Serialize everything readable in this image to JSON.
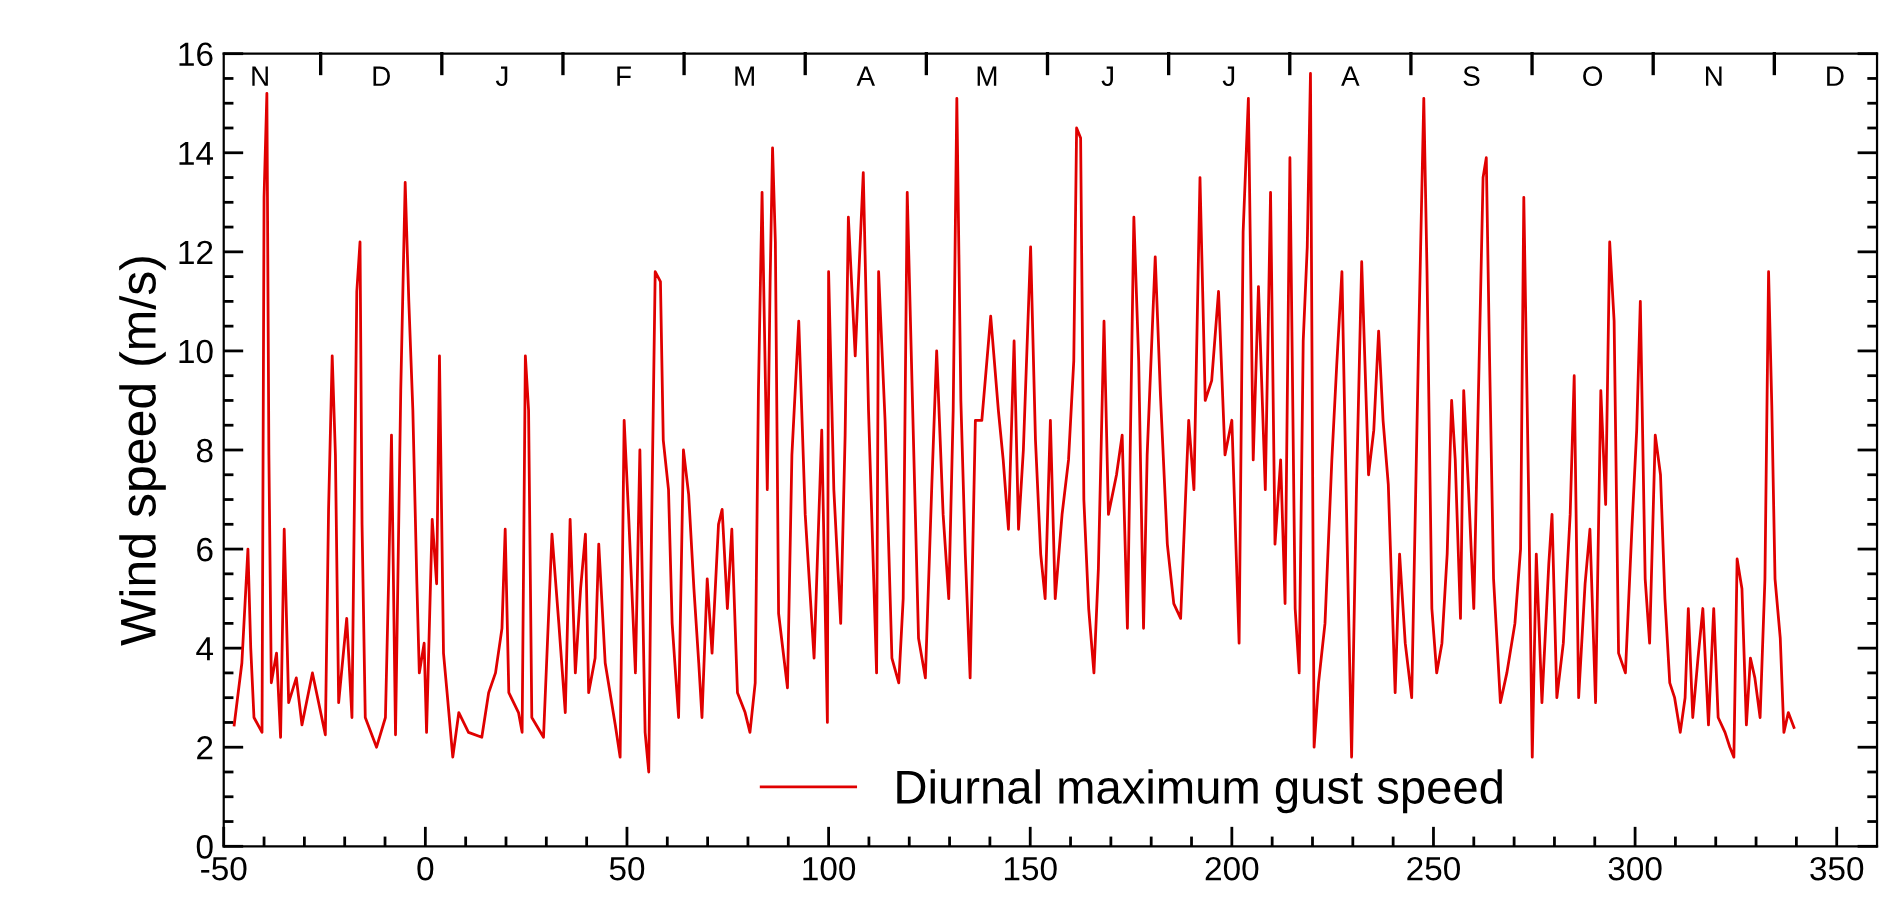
{
  "chart_data": {
    "type": "line",
    "ylabel": "Wind speed (m/s)",
    "legend": "bottom",
    "grid": false,
    "line_style": "solid",
    "marker": "none",
    "xlim": [
      -50,
      360
    ],
    "ylim": [
      0,
      16
    ],
    "xticks": [
      -50,
      {
        "value": -40,
        "label": null
      },
      {
        "value": -30,
        "label": null
      },
      {
        "value": -20,
        "label": null
      },
      {
        "value": -10,
        "label": null
      },
      0,
      {
        "value": 10,
        "label": null
      },
      {
        "value": 20,
        "label": null
      },
      {
        "value": 30,
        "label": null
      },
      {
        "value": 40,
        "label": null
      },
      50,
      {
        "value": 60,
        "label": null
      },
      {
        "value": 70,
        "label": null
      },
      {
        "value": 80,
        "label": null
      },
      {
        "value": 90,
        "label": null
      },
      100,
      {
        "value": 110,
        "label": null
      },
      {
        "value": 120,
        "label": null
      },
      {
        "value": 130,
        "label": null
      },
      {
        "value": 140,
        "label": null
      },
      150,
      {
        "value": 160,
        "label": null
      },
      {
        "value": 170,
        "label": null
      },
      {
        "value": 180,
        "label": null
      },
      {
        "value": 190,
        "label": null
      },
      200,
      {
        "value": 210,
        "label": null
      },
      {
        "value": 220,
        "label": null
      },
      {
        "value": 230,
        "label": null
      },
      {
        "value": 240,
        "label": null
      },
      250,
      {
        "value": 260,
        "label": null
      },
      {
        "value": 270,
        "label": null
      },
      {
        "value": 280,
        "label": null
      },
      {
        "value": 290,
        "label": null
      },
      300,
      {
        "value": 310,
        "label": null
      },
      {
        "value": 320,
        "label": null
      },
      {
        "value": 330,
        "label": null
      },
      {
        "value": 340,
        "label": null
      },
      350
    ],
    "yticks": [
      0,
      {
        "value": 0.5,
        "label": null
      },
      {
        "value": 1,
        "label": null
      },
      {
        "value": 1.5,
        "label": null
      },
      2,
      {
        "value": 2.5,
        "label": null
      },
      {
        "value": 3,
        "label": null
      },
      {
        "value": 3.5,
        "label": null
      },
      4,
      {
        "value": 4.5,
        "label": null
      },
      {
        "value": 5,
        "label": null
      },
      {
        "value": 5.5,
        "label": null
      },
      6,
      {
        "value": 6.5,
        "label": null
      },
      {
        "value": 7,
        "label": null
      },
      {
        "value": 7.5,
        "label": null
      },
      8,
      {
        "value": 8.5,
        "label": null
      },
      {
        "value": 9,
        "label": null
      },
      {
        "value": 9.5,
        "label": null
      },
      10,
      {
        "value": 10.5,
        "label": null
      },
      {
        "value": 11,
        "label": null
      },
      {
        "value": 11.5,
        "label": null
      },
      12,
      {
        "value": 12.5,
        "label": null
      },
      {
        "value": 13,
        "label": null
      },
      {
        "value": 13.5,
        "label": null
      },
      14,
      {
        "value": 14.5,
        "label": null
      },
      {
        "value": 15,
        "label": null
      },
      {
        "value": 15.5,
        "label": null
      },
      16
    ],
    "annotations": [
      "N",
      "D",
      "J",
      "F",
      "M",
      "A",
      "M",
      "J",
      "J",
      "A",
      "S",
      "O",
      "N",
      "D"
    ],
    "series": [
      {
        "name": "Diurnal maximum gust speed",
        "color": "#e00000",
        "x": [
          -47.4,
          -45.5,
          -44,
          -43.3,
          -42.5,
          -40.5,
          -40,
          -39.3,
          -38.8,
          -38.2,
          -36.9,
          -35.9,
          -35,
          -33.9,
          -32,
          -30.6,
          -28,
          -24.8,
          -24,
          -23.1,
          -22.3,
          -21.5,
          -19.5,
          -18.2,
          -17,
          -16.2,
          -15.7,
          -14.9,
          -12.1,
          -9.9,
          -9.1,
          -8.4,
          -7.4,
          -6.1,
          -5,
          -4.1,
          -3.1,
          -2.1,
          -1.5,
          -0.3,
          0.3,
          1.7,
          2.8,
          3.5,
          4.5,
          5.5,
          6.8,
          8.3,
          10.7,
          14,
          15.7,
          17.4,
          19,
          19.8,
          20.7,
          23.1,
          24,
          24.8,
          25.6,
          26.4,
          29.3,
          31.4,
          33.1,
          34.7,
          35.9,
          37.2,
          38.5,
          39.7,
          40.5,
          42.1,
          43,
          44.6,
          47.1,
          48.3,
          49.3,
          50.4,
          52.1,
          53.2,
          54.5,
          55.4,
          55.9,
          57,
          58.3,
          59,
          60.3,
          61.2,
          62.8,
          64,
          65.3,
          66.6,
          67.8,
          68.6,
          69.9,
          71.1,
          72.7,
          73.6,
          74.9,
          76,
          77.4,
          79.3,
          80.5,
          81.8,
          82.6,
          83.5,
          84.8,
          85.5,
          86.1,
          86.8,
          87.6,
          89.8,
          90.9,
          92.6,
          94.2,
          96.4,
          98.3,
          99.7,
          100,
          101.3,
          103,
          104.1,
          104.9,
          106.6,
          108.6,
          109.9,
          111.9,
          112.4,
          114,
          115.7,
          117.4,
          118.5,
          119.5,
          120.7,
          122.3,
          124,
          125.6,
          126.8,
          128.4,
          129.8,
          130.9,
          131.8,
          132.8,
          133.9,
          135.1,
          136.4,
          138,
          140.2,
          142.1,
          143.3,
          144.6,
          146,
          147.1,
          148.3,
          150.1,
          151.3,
          152.6,
          153.7,
          155,
          156.2,
          157.9,
          159.5,
          160.8,
          161.5,
          162.5,
          163.3,
          164.5,
          165.8,
          166.9,
          168.3,
          169.4,
          171.4,
          172.8,
          174.1,
          175.7,
          176.9,
          178.1,
          179,
          181,
          182.3,
          184,
          185.6,
          187.3,
          189.3,
          190.6,
          192.1,
          193.4,
          195,
          196.7,
          198.3,
          200,
          201.8,
          202.8,
          204.1,
          205.3,
          206.6,
          208.3,
          209.6,
          210.7,
          212.1,
          213.2,
          214.4,
          215.7,
          216.7,
          217.7,
          218.7,
          219.5,
          220.4,
          221.5,
          223.1,
          224.8,
          226,
          227.3,
          228.6,
          229.7,
          230.9,
          232.2,
          233.9,
          235.2,
          236.4,
          237.5,
          238.8,
          240.5,
          241.6,
          243,
          244.6,
          246.3,
          247.6,
          248.4,
          249.6,
          250.8,
          252.1,
          253.4,
          254.5,
          255.4,
          256.7,
          257.5,
          258.7,
          260,
          261.3,
          262.3,
          263.1,
          263.9,
          264.9,
          266.6,
          268.2,
          270.2,
          271.6,
          272.4,
          273.6,
          274.5,
          275.5,
          276.9,
          278.6,
          279.4,
          280.6,
          282.2,
          283.9,
          284.9,
          286,
          287.6,
          288.8,
          290.2,
          291.5,
          292.7,
          293.7,
          294.8,
          295.9,
          297.6,
          299.2,
          300.4,
          301.3,
          302.5,
          303.6,
          305,
          306.3,
          307.4,
          308.6,
          309.8,
          311.2,
          312.4,
          313.2,
          314.3,
          315.6,
          316.8,
          318.2,
          319.5,
          320.6,
          322.3,
          323.5,
          324.5,
          325.3,
          326.5,
          327.6,
          328.6,
          329.7,
          331,
          332.2,
          333.1,
          333.9,
          334.7,
          336,
          336.9,
          338,
          339.4
        ],
        "values": [
          2.45,
          3.7,
          6.0,
          4.0,
          2.6,
          2.3,
          13.1,
          15.2,
          7.9,
          3.3,
          3.9,
          2.2,
          6.4,
          2.9,
          3.4,
          2.45,
          3.5,
          2.25,
          6.8,
          9.9,
          7.9,
          2.9,
          4.6,
          2.6,
          11.2,
          12.2,
          6.5,
          2.6,
          2.0,
          2.6,
          5.4,
          8.3,
          2.25,
          9.2,
          13.4,
          11,
          8.8,
          5.3,
          3.5,
          4.1,
          2.3,
          6.6,
          5.3,
          9.9,
          3.9,
          3.0,
          1.8,
          2.7,
          2.3,
          2.2,
          3.1,
          3.5,
          4.4,
          6.4,
          3.1,
          2.7,
          2.3,
          9.9,
          8.8,
          2.6,
          2.2,
          6.3,
          4.5,
          2.7,
          6.6,
          3.5,
          5.2,
          6.3,
          3.1,
          3.8,
          6.1,
          3.7,
          2.45,
          1.8,
          8.6,
          6.7,
          3.5,
          8.0,
          2.3,
          1.5,
          5.3,
          11.6,
          11.4,
          8.2,
          7.2,
          4.5,
          2.6,
          8.0,
          7.1,
          5.2,
          3.7,
          2.6,
          5.4,
          3.9,
          6.5,
          6.8,
          4.8,
          6.4,
          3.1,
          2.7,
          2.3,
          3.3,
          9.2,
          13.2,
          7.2,
          11.4,
          14.1,
          12.2,
          4.7,
          3.2,
          7.9,
          10.6,
          6.7,
          3.8,
          8.4,
          2.5,
          11.6,
          7.2,
          4.5,
          8.3,
          12.7,
          9.9,
          13.6,
          8.8,
          3.5,
          11.6,
          8.6,
          3.8,
          3.3,
          5.0,
          13.2,
          9.3,
          4.2,
          3.4,
          7.3,
          10.0,
          6.7,
          5.0,
          8.8,
          15.1,
          9.0,
          5.9,
          3.4,
          8.6,
          8.6,
          10.7,
          8.8,
          7.8,
          6.4,
          10.2,
          6.4,
          8.0,
          12.1,
          8.2,
          5.9,
          5.0,
          8.6,
          5.0,
          6.7,
          7.8,
          9.8,
          14.5,
          14.3,
          7.0,
          4.8,
          3.5,
          5.6,
          10.6,
          6.7,
          7.5,
          8.3,
          4.4,
          12.7,
          9.8,
          4.4,
          7.9,
          11.9,
          9.1,
          6.1,
          4.9,
          4.6,
          8.6,
          7.2,
          13.5,
          9.0,
          9.4,
          11.2,
          7.9,
          8.6,
          4.1,
          12.4,
          15.1,
          7.8,
          11.3,
          7.2,
          13.2,
          6.1,
          7.8,
          4.9,
          13.9,
          4.8,
          3.5,
          10.2,
          12.1,
          15.6,
          2.0,
          3.3,
          4.5,
          7.8,
          9.7,
          11.6,
          6.1,
          1.8,
          7.2,
          11.8,
          7.5,
          8.4,
          10.4,
          8.6,
          7.3,
          3.1,
          5.9,
          4.1,
          3.0,
          10.1,
          15.1,
          11.6,
          4.8,
          3.5,
          4.1,
          5.9,
          9.0,
          7.8,
          4.6,
          9.2,
          7.2,
          4.8,
          9.7,
          13.5,
          13.9,
          9.9,
          5.4,
          2.9,
          3.5,
          4.5,
          6.0,
          13.1,
          7.1,
          1.8,
          5.9,
          2.9,
          5.7,
          6.7,
          3.0,
          4.1,
          6.7,
          9.5,
          3.0,
          5.3,
          6.4,
          2.9,
          9.2,
          6.9,
          12.2,
          10.6,
          3.9,
          3.5,
          6.4,
          8.4,
          11.0,
          5.4,
          4.1,
          8.3,
          7.5,
          5.0,
          3.3,
          3.0,
          2.3,
          3.0,
          4.8,
          2.6,
          3.8,
          4.8,
          2.45,
          4.8,
          2.6,
          2.3,
          2.0,
          1.8,
          5.8,
          5.2,
          2.45,
          3.8,
          3.4,
          2.6,
          5.4,
          11.6,
          8.9,
          5.4,
          4.2,
          2.3,
          2.7,
          2.4
        ]
      }
    ]
  }
}
